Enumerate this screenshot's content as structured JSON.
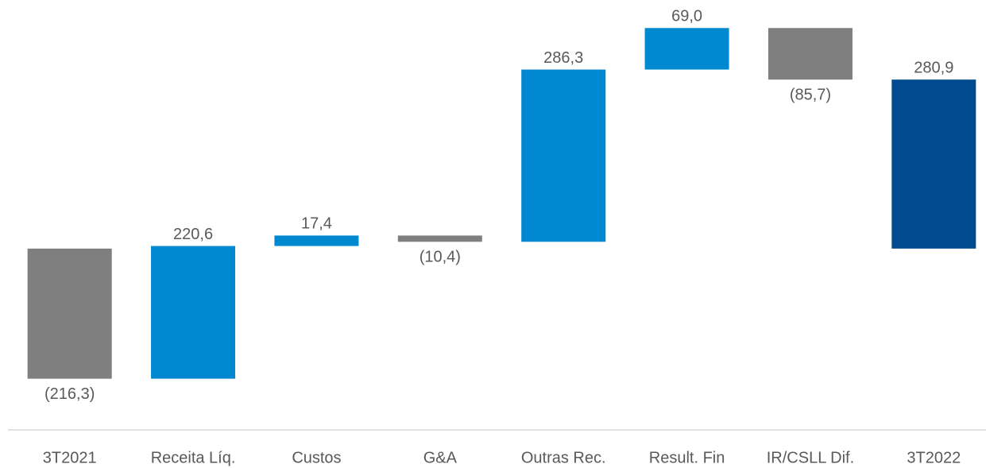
{
  "chart_data": {
    "type": "waterfall",
    "categories": [
      "3T2021",
      "Receita Líq.",
      "Custos",
      "G&A",
      "Outras Rec.",
      "Result. Fin",
      "IR/CSLL Dif.",
      "3T2022"
    ],
    "values": [
      -216.3,
      220.6,
      17.4,
      -10.4,
      286.3,
      69.0,
      -85.7,
      280.9
    ],
    "value_labels": [
      "(216,3)",
      "220,6",
      "17,4",
      "(10,4)",
      "286,3",
      "69,0",
      "(85,7)",
      "280,9"
    ],
    "colors": [
      "#7f7f7f",
      "#0088d1",
      "#0088d1",
      "#7f7f7f",
      "#0088d1",
      "#0088d1",
      "#7f7f7f",
      "#004a8f"
    ],
    "ylim": [
      -300,
      400
    ]
  }
}
